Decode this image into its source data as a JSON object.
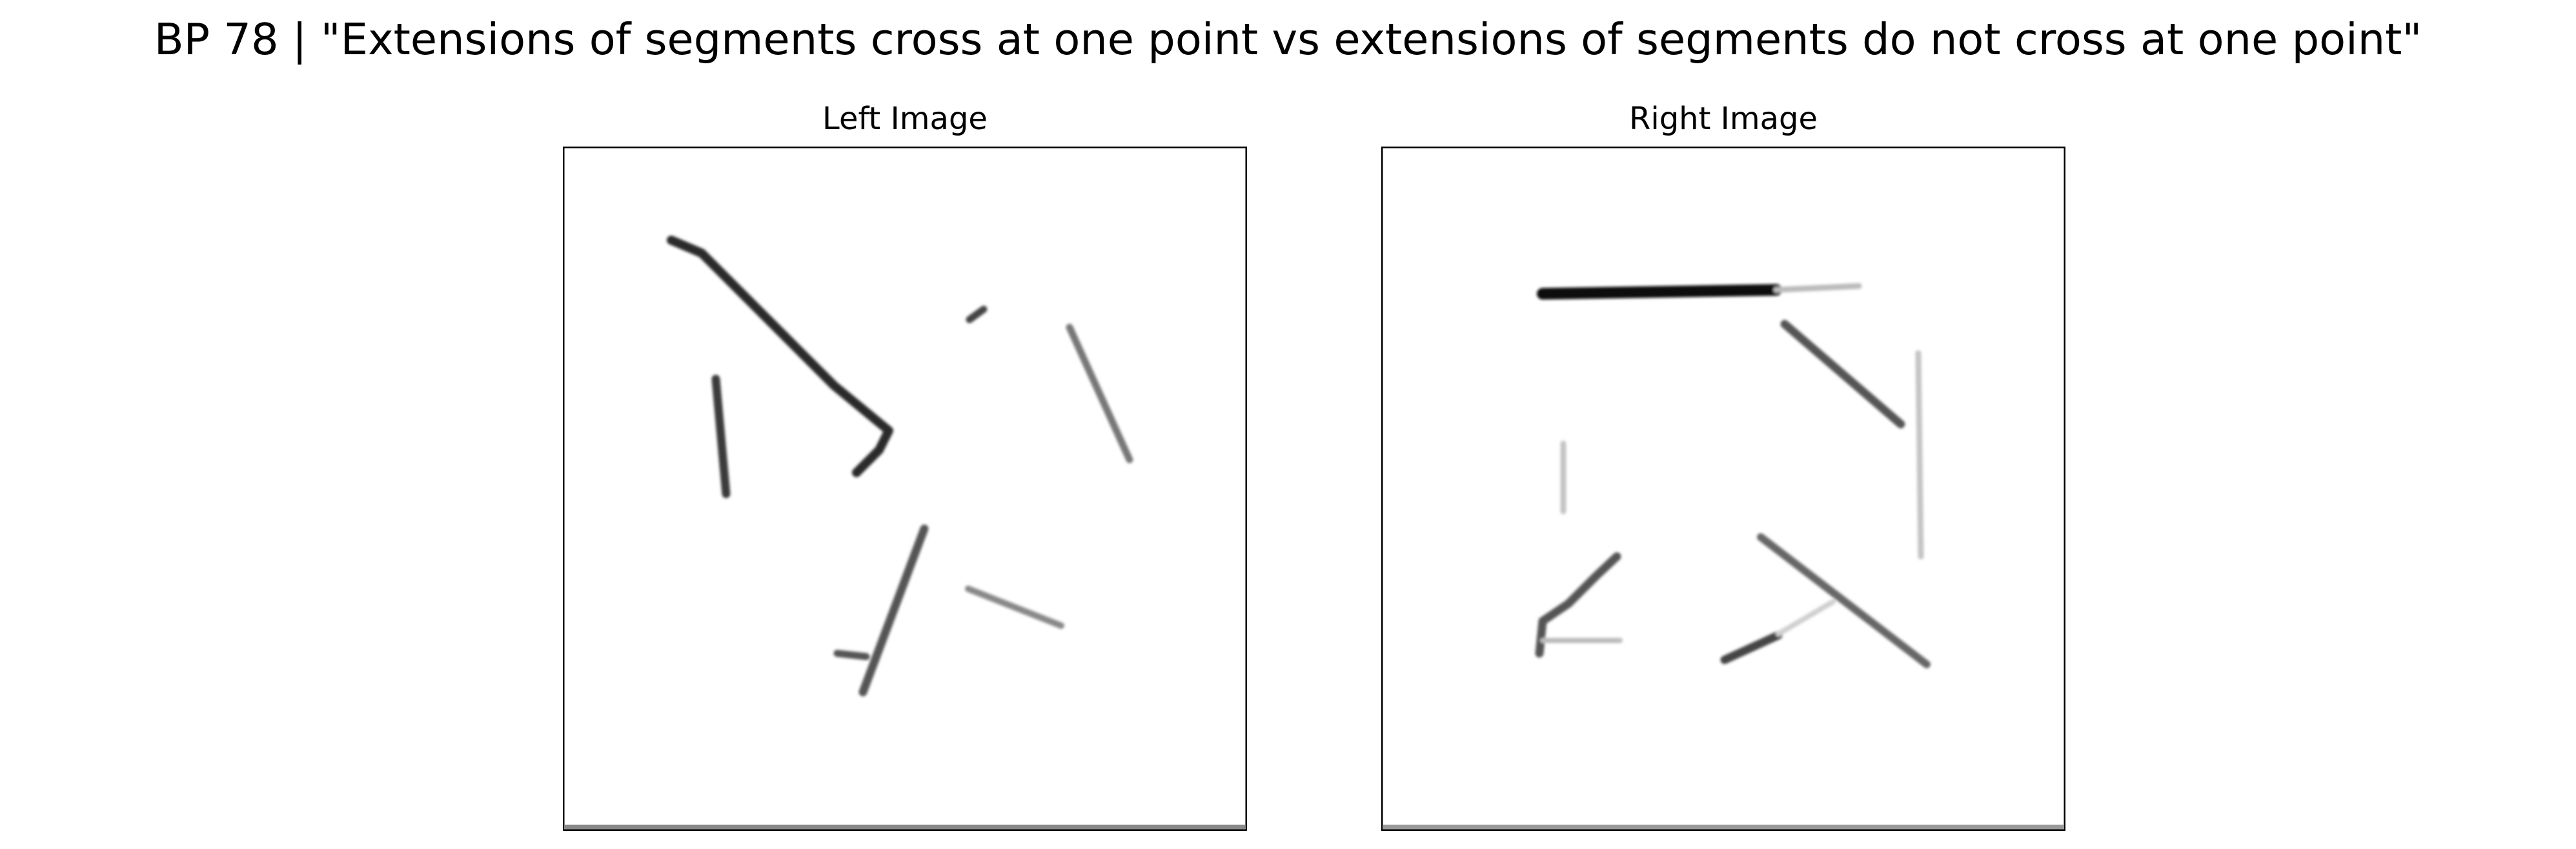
{
  "figure": {
    "title": "BP 78 | \"Extensions of segments cross at one point vs extensions of segments do not cross at one point\""
  },
  "panels": [
    {
      "title": "Left Image"
    },
    {
      "title": "Right Image"
    }
  ]
}
